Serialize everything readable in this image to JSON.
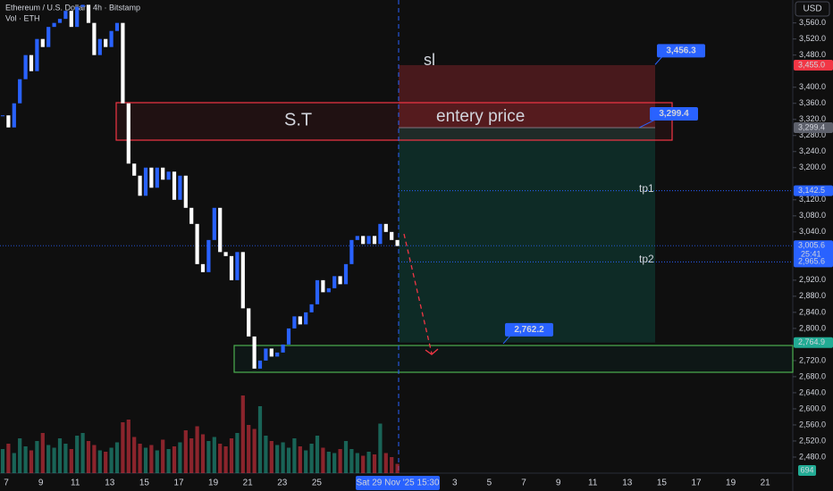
{
  "chart_data": {
    "type": "candlestick",
    "title": "Ethereum / U.S. Dollar · 4h · Bitstamp",
    "subtitle": "Vol · ETH",
    "currency": "USD",
    "close": [
      3330,
      3300,
      3360,
      3420,
      3480,
      3440,
      3520,
      3500,
      3550,
      3560,
      3570,
      3590,
      3550,
      3600,
      3605,
      3560,
      3480,
      3520,
      3500,
      3540,
      3560,
      3360,
      3210,
      3180,
      3130,
      3200,
      3150,
      3200,
      3170,
      3190,
      3120,
      3180,
      3100,
      3060,
      2960,
      2940,
      3020,
      3100,
      2990,
      2980,
      2920,
      2990,
      2850,
      2780,
      2700,
      2720,
      2750,
      2730,
      2740,
      2760,
      2800,
      2830,
      2810,
      2840,
      2860,
      2920,
      2890,
      2900,
      2930,
      2910,
      2960,
      3020,
      3030,
      3010,
      3030,
      3010,
      3060,
      3040,
      3020,
      3005
    ],
    "volume": [
      1800,
      2200,
      1500,
      2600,
      2000,
      1700,
      2400,
      3000,
      2100,
      1900,
      2600,
      2200,
      1800,
      2800,
      3000,
      2400,
      2100,
      1700,
      1600,
      1900,
      2300,
      3800,
      4000,
      2700,
      2200,
      1900,
      2100,
      1700,
      2500,
      1800,
      2000,
      2300,
      3200,
      2600,
      3500,
      2900,
      2400,
      2700,
      2200,
      2000,
      2600,
      3000,
      5800,
      3600,
      3300,
      5000,
      2800,
      2400,
      2100,
      2300,
      1900,
      2600,
      2000,
      1700,
      2200,
      2800,
      1900,
      1600,
      1500,
      1800,
      2400,
      1800,
      1500,
      1300,
      1600,
      1400,
      3700,
      1500,
      1200,
      694
    ],
    "up_color": "#2962ff",
    "down_color": "#ffffff",
    "ylim": [
      2440,
      3617
    ],
    "vlim": [
      0,
      6000
    ],
    "yticks": [
      {
        "value": 3560,
        "label": "3,560.0"
      },
      {
        "value": 3520,
        "label": "3,520.0"
      },
      {
        "value": 3480,
        "label": "3,480.0"
      },
      {
        "value": 3400,
        "label": "3,400.0"
      },
      {
        "value": 3360,
        "label": "3,360.0"
      },
      {
        "value": 3320,
        "label": "3,320.0"
      },
      {
        "value": 3280,
        "label": "3,280.0"
      },
      {
        "value": 3240,
        "label": "3,240.0"
      },
      {
        "value": 3200,
        "label": "3,200.0"
      },
      {
        "value": 3120,
        "label": "3,120.0"
      },
      {
        "value": 3080,
        "label": "3,080.0"
      },
      {
        "value": 3040,
        "label": "3,040.0"
      },
      {
        "value": 2920,
        "label": "2,920.0"
      },
      {
        "value": 2880,
        "label": "2,880.0"
      },
      {
        "value": 2840,
        "label": "2,840.0"
      },
      {
        "value": 2800,
        "label": "2,800.0"
      },
      {
        "value": 2720,
        "label": "2,720.0"
      },
      {
        "value": 2680,
        "label": "2,680.0"
      },
      {
        "value": 2640,
        "label": "2,640.0"
      },
      {
        "value": 2600,
        "label": "2,600.0"
      },
      {
        "value": 2560,
        "label": "2,560.0"
      },
      {
        "value": 2520,
        "label": "2,520.0"
      },
      {
        "value": 2480,
        "label": "2,480.0"
      }
    ],
    "xticks": [
      "7",
      "9",
      "11",
      "13",
      "15",
      "17",
      "19",
      "21",
      "23",
      "25",
      null,
      null,
      null,
      "3",
      "5",
      "7",
      "9",
      "11",
      "13",
      "15",
      "17",
      "19",
      "21"
    ],
    "crosshair_label": "Sat 29 Nov '25 15:30",
    "annotations": [
      "sl",
      "S.T",
      "entery price",
      "tp1",
      "tp2"
    ],
    "axis_badges": [
      {
        "value": 3455.0,
        "label": "3,455.0",
        "color": "#f23645"
      },
      {
        "value": 3299.4,
        "label": "3,299.4",
        "color": "#5d606b"
      },
      {
        "value": 3142.5,
        "label": "3,142.5",
        "color": "#2962ff"
      },
      {
        "value": 3005.6,
        "label": "3,005.6",
        "color": "#2962ff"
      },
      {
        "value": 2965.6,
        "label": "2,965.6",
        "color": "#2962ff"
      },
      {
        "value": 2764.9,
        "label": "2,764.9",
        "color": "#22ab94"
      }
    ],
    "countdown": "25:41",
    "chart_badges": [
      {
        "value": 3456.3,
        "label": "3,456.3"
      },
      {
        "value": 3299.4,
        "label": "3,299.4"
      },
      {
        "value": 2762.2,
        "label": "2,762.2"
      }
    ],
    "last_volume": 694
  }
}
